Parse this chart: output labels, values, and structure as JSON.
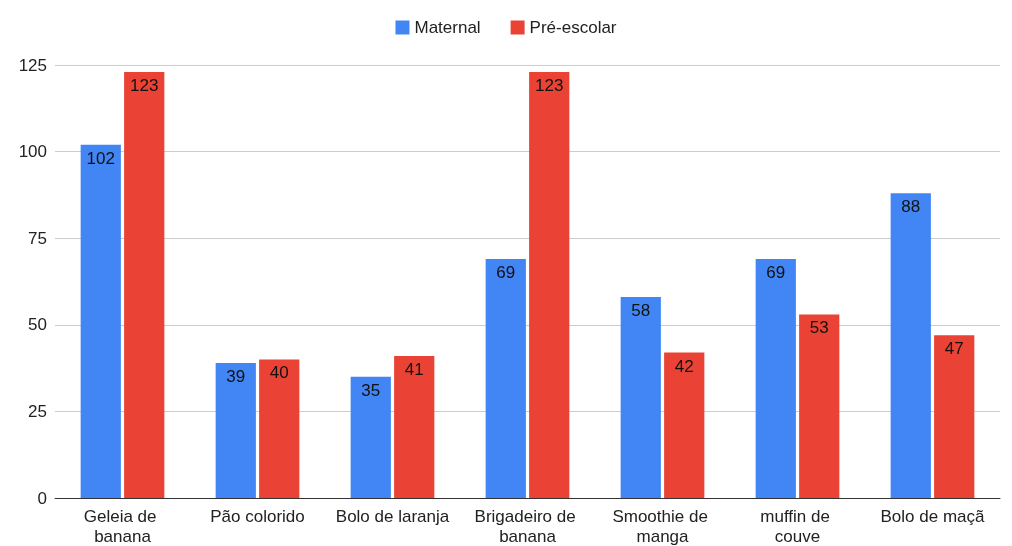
{
  "chart_data": {
    "type": "bar",
    "categories": [
      "Geleia de banana",
      "Pão colorido",
      "Bolo de laranja",
      "Brigadeiro de banana",
      "Smoothie de manga",
      "muffin de couve",
      "Bolo de maçã"
    ],
    "series": [
      {
        "name": "Maternal",
        "color": "#4285f4",
        "values": [
          102,
          39,
          35,
          69,
          58,
          69,
          88
        ]
      },
      {
        "name": "Pré-escolar",
        "color": "#ea4335",
        "values": [
          123,
          40,
          41,
          123,
          42,
          53,
          47
        ]
      }
    ],
    "ylim": [
      0,
      125
    ],
    "yticks": [
      0,
      25,
      50,
      75,
      100,
      125
    ],
    "grid": "y",
    "legend": "top",
    "data_labels": true
  }
}
